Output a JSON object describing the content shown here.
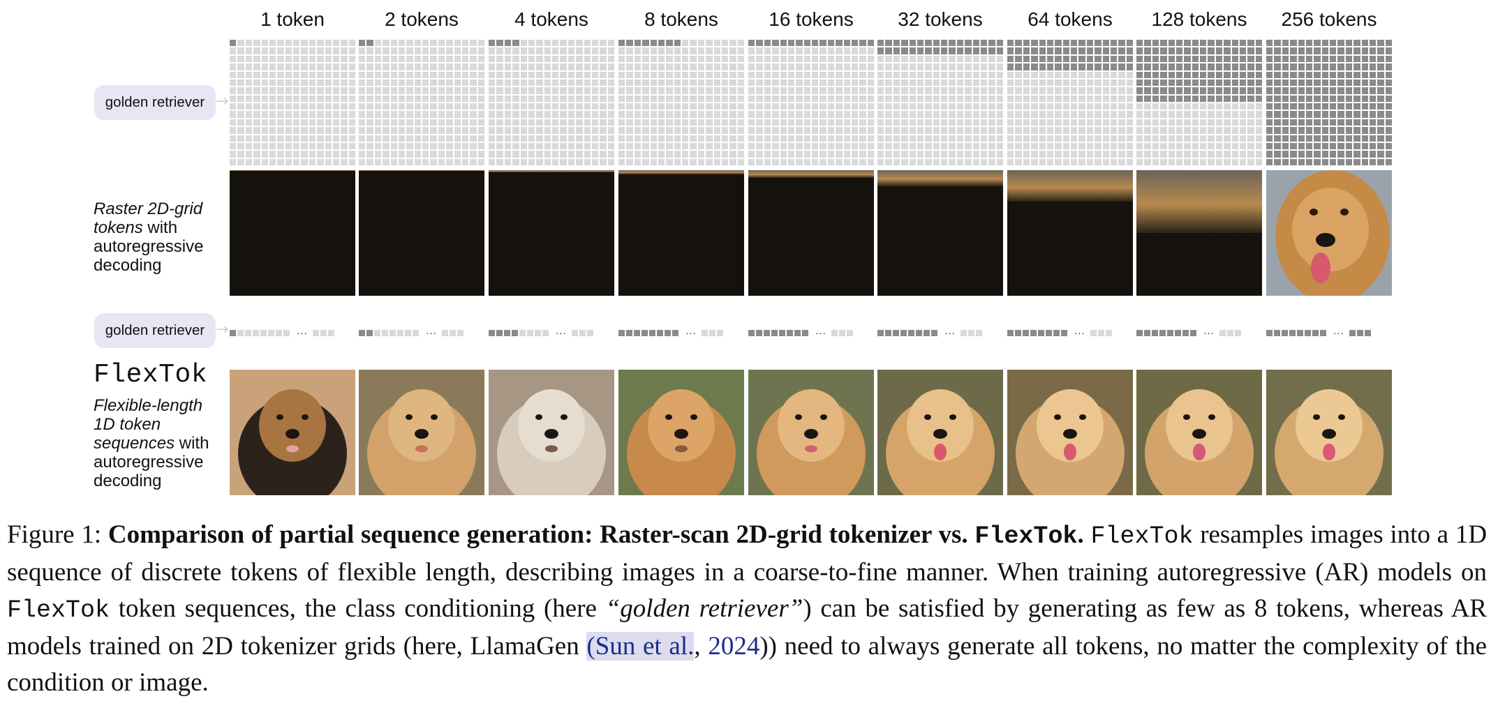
{
  "columns": [
    "1 token",
    "2 tokens",
    "4 tokens",
    "8 tokens",
    "16 tokens",
    "32 tokens",
    "64 tokens",
    "128 tokens",
    "256 tokens"
  ],
  "token_counts": [
    1,
    2,
    4,
    8,
    16,
    32,
    64,
    128,
    256
  ],
  "condition_label": "golden retriever",
  "raster_row": {
    "label_italic": "Raster 2D-grid tokens",
    "label_rest": " with autoregressive decoding",
    "image_desc": "golden retriever revealed top-down as more raster tokens are generated"
  },
  "flextok_row": {
    "title": "FlexTok",
    "label_italic": "Flexible-length 1D token sequences",
    "label_rest": " with autoregressive decoding",
    "image_desc": "dog images refining from generic dog to golden retriever as more tokens are used"
  },
  "ellipsis": "···",
  "caption": {
    "figure_label": "Figure 1:",
    "bold_title": "Comparison of partial sequence generation: Raster-scan 2D-grid tokenizer vs.",
    "bold_mono": "FlexTok",
    "bold_end": ".",
    "mono1": "FlexTok",
    "text1": " resamples images into a 1D sequence of discrete tokens of flexible length, describing images in a coarse-to-fine manner. When training autoregressive (AR) models on ",
    "mono2": "FlexTok",
    "text2": " token sequences, the class conditioning (here ",
    "italic_quote": "“golden retriever”",
    "text3": ") can be satisfied by generating as few as 8 tokens, whereas AR models trained on 2D tokenizer grids (here, LlamaGen ",
    "cite_author": "(Sun et al.",
    "cite_sep": ", ",
    "cite_year": "2024",
    "text4": ")) need to always generate all tokens, no matter the complexity of the condition or image."
  },
  "colors": {
    "token_on": "#8a8a8a",
    "token_off": "#d9d9d9",
    "pill_bg": "#e7e6f5",
    "link": "#1b2d8a"
  }
}
